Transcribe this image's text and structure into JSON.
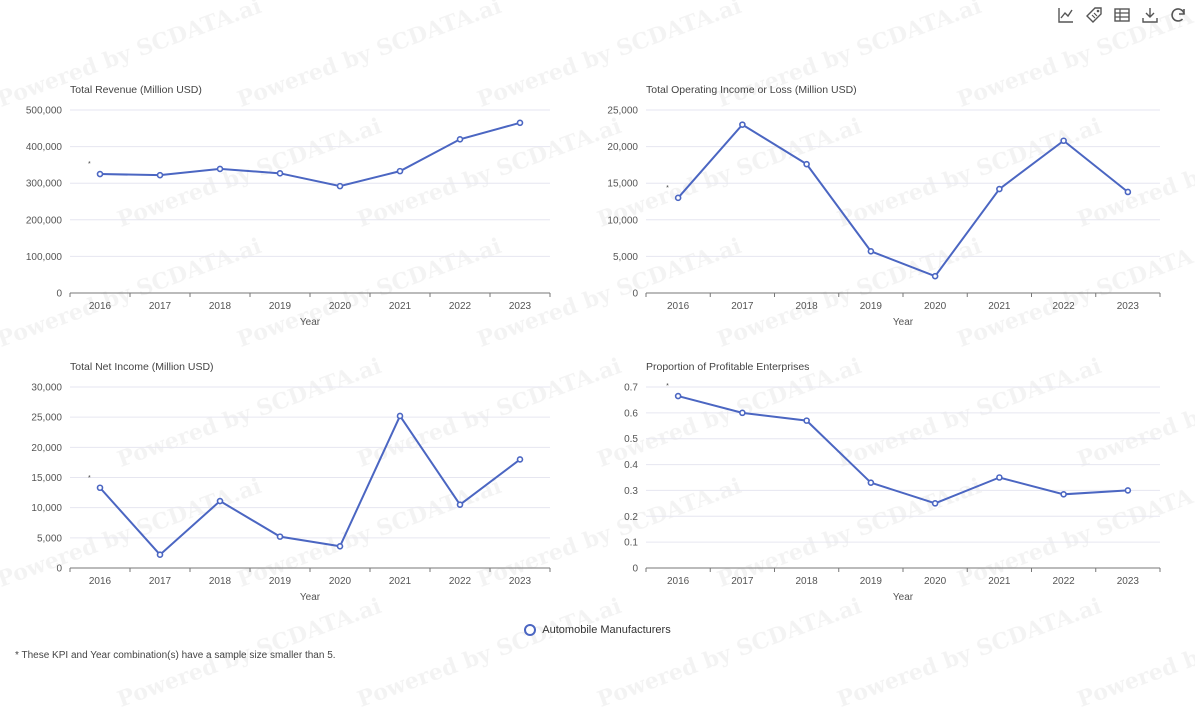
{
  "toolbar": {
    "icons": [
      "line-chart-icon",
      "tag-icon",
      "table-icon",
      "download-icon",
      "refresh-icon"
    ]
  },
  "watermark_text": "Powered by SCDATA.ai",
  "legend": {
    "series_name": "Automobile Manufacturers",
    "color": "#4b66c2"
  },
  "footnote": "* These KPI and Year combination(s) have a sample size smaller than 5.",
  "chart_data": [
    {
      "type": "line",
      "title": "Total Revenue (Million USD)",
      "xlabel": "Year",
      "categories": [
        "2016",
        "2017",
        "2018",
        "2019",
        "2020",
        "2021",
        "2022",
        "2023"
      ],
      "yticks": [
        "0",
        "100,000",
        "200,000",
        "300,000",
        "400,000",
        "500,000"
      ],
      "ylim": [
        0,
        500000
      ],
      "series": [
        {
          "name": "Automobile Manufacturers",
          "values": [
            325000,
            322000,
            339000,
            327000,
            292000,
            333000,
            420000,
            465000
          ]
        }
      ],
      "asterisk_categories": [
        "2016"
      ]
    },
    {
      "type": "line",
      "title": "Total Operating Income or Loss (Million USD)",
      "xlabel": "Year",
      "categories": [
        "2016",
        "2017",
        "2018",
        "2019",
        "2020",
        "2021",
        "2022",
        "2023"
      ],
      "yticks": [
        "0",
        "5,000",
        "10,000",
        "15,000",
        "20,000",
        "25,000"
      ],
      "ylim": [
        0,
        25000
      ],
      "series": [
        {
          "name": "Automobile Manufacturers",
          "values": [
            13000,
            23000,
            17600,
            5700,
            2300,
            14200,
            20800,
            13800
          ]
        }
      ],
      "asterisk_categories": [
        "2016"
      ]
    },
    {
      "type": "line",
      "title": "Total Net Income (Million USD)",
      "xlabel": "Year",
      "categories": [
        "2016",
        "2017",
        "2018",
        "2019",
        "2020",
        "2021",
        "2022",
        "2023"
      ],
      "yticks": [
        "0",
        "5,000",
        "10,000",
        "15,000",
        "20,000",
        "25,000",
        "30,000"
      ],
      "ylim": [
        0,
        30000
      ],
      "series": [
        {
          "name": "Automobile Manufacturers",
          "values": [
            13300,
            2200,
            11100,
            5200,
            3600,
            25200,
            10500,
            18000
          ]
        }
      ],
      "asterisk_categories": [
        "2016"
      ]
    },
    {
      "type": "line",
      "title": "Proportion of Profitable Enterprises",
      "xlabel": "Year",
      "categories": [
        "2016",
        "2017",
        "2018",
        "2019",
        "2020",
        "2021",
        "2022",
        "2023"
      ],
      "yticks": [
        "0",
        "0.1",
        "0.2",
        "0.3",
        "0.4",
        "0.5",
        "0.6",
        "0.7"
      ],
      "ylim": [
        0,
        0.7
      ],
      "series": [
        {
          "name": "Automobile Manufacturers",
          "values": [
            0.665,
            0.6,
            0.57,
            0.33,
            0.25,
            0.35,
            0.285,
            0.3
          ]
        }
      ],
      "asterisk_categories": [
        "2016"
      ]
    }
  ]
}
